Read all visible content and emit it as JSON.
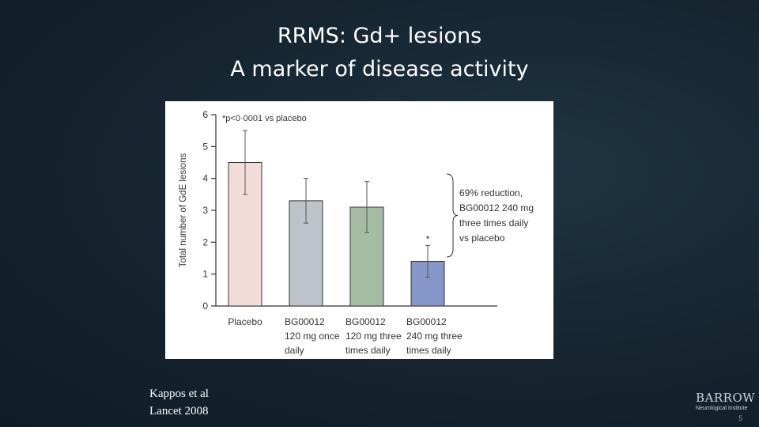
{
  "slide": {
    "title_line1": "RRMS: Gd+ lesions",
    "title_line2": "A marker of disease activity",
    "citation_line1": "Kappos et al",
    "citation_line2": "Lancet 2008",
    "logo_text": "BARROW",
    "logo_subtext": "Neurological Institute",
    "page_number": "5"
  },
  "chart_data": {
    "type": "bar",
    "ylabel": "Total number of GdE lesions",
    "ylim": [
      0,
      6
    ],
    "yticks": [
      0,
      1,
      2,
      3,
      4,
      5,
      6
    ],
    "categories": [
      [
        "Placebo"
      ],
      [
        "BG00012",
        "120 mg once",
        "daily"
      ],
      [
        "BG00012",
        "120 mg three",
        "times daily"
      ],
      [
        "BG00012",
        "240 mg three",
        "times daily"
      ]
    ],
    "values": [
      4.5,
      3.3,
      3.1,
      1.4
    ],
    "error_low": [
      3.5,
      2.6,
      2.3,
      0.9
    ],
    "error_high": [
      5.5,
      4.0,
      3.9,
      1.9
    ],
    "colors": [
      "#f3dcd8",
      "#bcc3c9",
      "#a6bda4",
      "#8497c8"
    ],
    "significance_markers": [
      "",
      "",
      "",
      "*"
    ],
    "annotation_top": "*p<0·0001 vs placebo",
    "annotation_right": [
      "69% reduction,",
      "BG00012 240 mg",
      "three times daily",
      "vs placebo"
    ]
  }
}
